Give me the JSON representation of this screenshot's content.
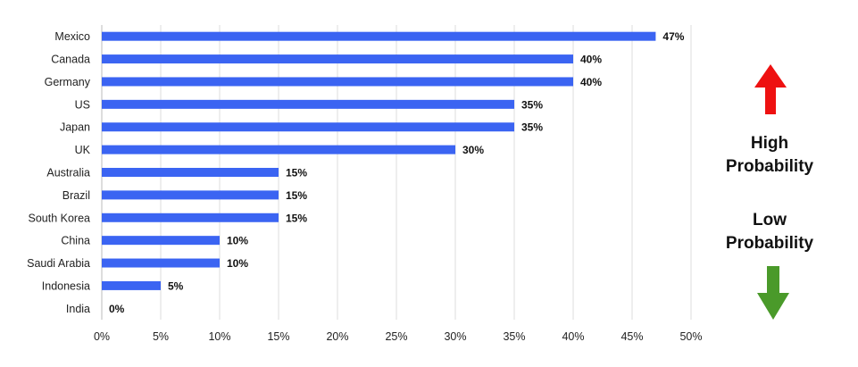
{
  "chart_data": {
    "type": "bar",
    "orientation": "horizontal",
    "categories": [
      "Mexico",
      "Canada",
      "Germany",
      "US",
      "Japan",
      "UK",
      "Australia",
      "Brazil",
      "South Korea",
      "China",
      "Saudi Arabia",
      "Indonesia",
      "India"
    ],
    "values": [
      47,
      40,
      40,
      35,
      35,
      30,
      15,
      15,
      15,
      10,
      10,
      5,
      0
    ],
    "value_labels": [
      "47%",
      "40%",
      "40%",
      "35%",
      "35%",
      "30%",
      "15%",
      "15%",
      "15%",
      "10%",
      "10%",
      "5%",
      "0%"
    ],
    "xlim": [
      0,
      50
    ],
    "x_ticks": [
      0,
      5,
      10,
      15,
      20,
      25,
      30,
      35,
      40,
      45,
      50
    ],
    "x_tick_labels": [
      "0%",
      "5%",
      "10%",
      "15%",
      "20%",
      "25%",
      "30%",
      "35%",
      "40%",
      "45%",
      "50%"
    ],
    "title": "",
    "xlabel": "",
    "ylabel": "",
    "grid": true,
    "bar_color": "#3b64f2"
  },
  "legend": {
    "high_label_line1": "High",
    "high_label_line2": "Probability",
    "low_label_line1": "Low",
    "low_label_line2": "Probability",
    "up_arrow_color": "#ee1111",
    "down_arrow_color": "#4a9a2a"
  }
}
